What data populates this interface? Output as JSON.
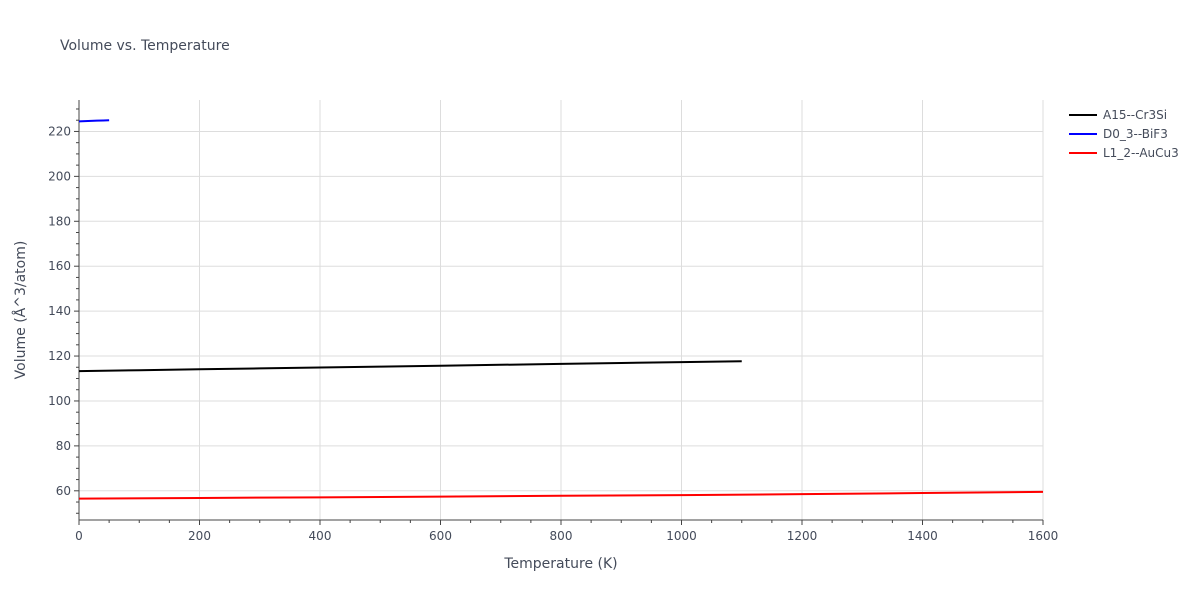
{
  "chart_data": {
    "type": "line",
    "title": "Volume vs. Temperature",
    "xlabel": "Temperature (K)",
    "ylabel": "Volume (Å^3/atom)",
    "xlim": [
      0,
      1600
    ],
    "ylim": [
      47,
      234
    ],
    "x_ticks": [
      0,
      200,
      400,
      600,
      800,
      1000,
      1200,
      1400,
      1600
    ],
    "y_ticks": [
      60,
      80,
      100,
      120,
      140,
      160,
      180,
      200,
      220
    ],
    "grid": true,
    "legend_position": "right",
    "series": [
      {
        "name": "A15--Cr3Si",
        "color": "#000000",
        "x": [
          0,
          100,
          200,
          300,
          400,
          500,
          600,
          700,
          800,
          900,
          1000,
          1100
        ],
        "y": [
          113.3,
          113.7,
          114.1,
          114.5,
          114.9,
          115.3,
          115.7,
          116.1,
          116.5,
          116.9,
          117.3,
          117.7
        ]
      },
      {
        "name": "D0_3--BiF3",
        "color": "#0000ff",
        "x": [
          0,
          10,
          20,
          30,
          40,
          50
        ],
        "y": [
          224.5,
          224.6,
          224.7,
          224.8,
          224.9,
          225.0
        ]
      },
      {
        "name": "L1_2--AuCu3",
        "color": "#ff0000",
        "x": [
          0,
          200,
          400,
          600,
          800,
          1000,
          1200,
          1400,
          1600
        ],
        "y": [
          56.5,
          56.8,
          57.1,
          57.4,
          57.8,
          58.1,
          58.5,
          59.0,
          59.5
        ]
      }
    ]
  }
}
